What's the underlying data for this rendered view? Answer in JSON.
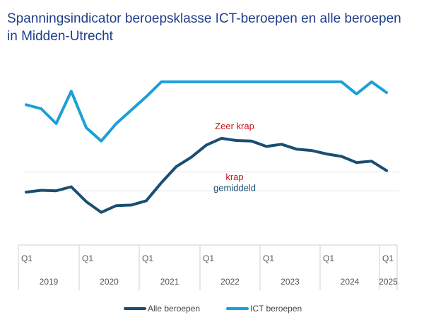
{
  "title": "Spanningsindicator beroepsklasse ICT-beroepen en alle beroepen in Midden-Utrecht",
  "chart_data": {
    "type": "line",
    "title": "Spanningsindicator beroepsklasse ICT-beroepen en alle beroepen in Midden-Utrecht",
    "x": [
      "2019Q1",
      "2019Q2",
      "2019Q3",
      "2019Q4",
      "2020Q1",
      "2020Q2",
      "2020Q3",
      "2020Q4",
      "2021Q1",
      "2021Q2",
      "2021Q3",
      "2021Q4",
      "2022Q1",
      "2022Q2",
      "2022Q3",
      "2022Q4",
      "2023Q1",
      "2023Q2",
      "2023Q3",
      "2023Q4",
      "2024Q1",
      "2024Q2",
      "2024Q3",
      "2024Q4",
      "2025Q1"
    ],
    "tick_label": "Q1",
    "years": [
      "2019",
      "2020",
      "2021",
      "2022",
      "2023",
      "2024",
      "2025"
    ],
    "ylim": [
      -2.2,
      3.6
    ],
    "zones": [
      {
        "label": "Zeer krap",
        "y": 1.9,
        "color": "#c4161c"
      },
      {
        "label": "krap",
        "y": 0.0,
        "color": "#c4161c",
        "line": 0.2
      },
      {
        "label": "gemiddeld",
        "y": -0.4,
        "color": "#1b4f72",
        "line": -0.5
      }
    ],
    "series": [
      {
        "name": "Alle beroepen",
        "color": "#1a4e72",
        "values": [
          -0.55,
          -0.48,
          -0.5,
          -0.35,
          -0.9,
          -1.3,
          -1.05,
          -1.03,
          -0.87,
          -0.2,
          0.4,
          0.75,
          1.2,
          1.45,
          1.37,
          1.35,
          1.15,
          1.23,
          1.05,
          1.0,
          0.87,
          0.78,
          0.55,
          0.6,
          0.25
        ]
      },
      {
        "name": "ICT beroepen",
        "color": "#1d9fd8",
        "values": [
          2.7,
          2.55,
          2.0,
          3.2,
          1.85,
          1.35,
          2.0,
          2.5,
          3.0,
          3.55,
          3.55,
          3.55,
          3.55,
          3.55,
          3.55,
          3.55,
          3.55,
          3.55,
          3.55,
          3.55,
          3.55,
          3.55,
          3.1,
          3.55,
          3.15
        ]
      }
    ]
  }
}
